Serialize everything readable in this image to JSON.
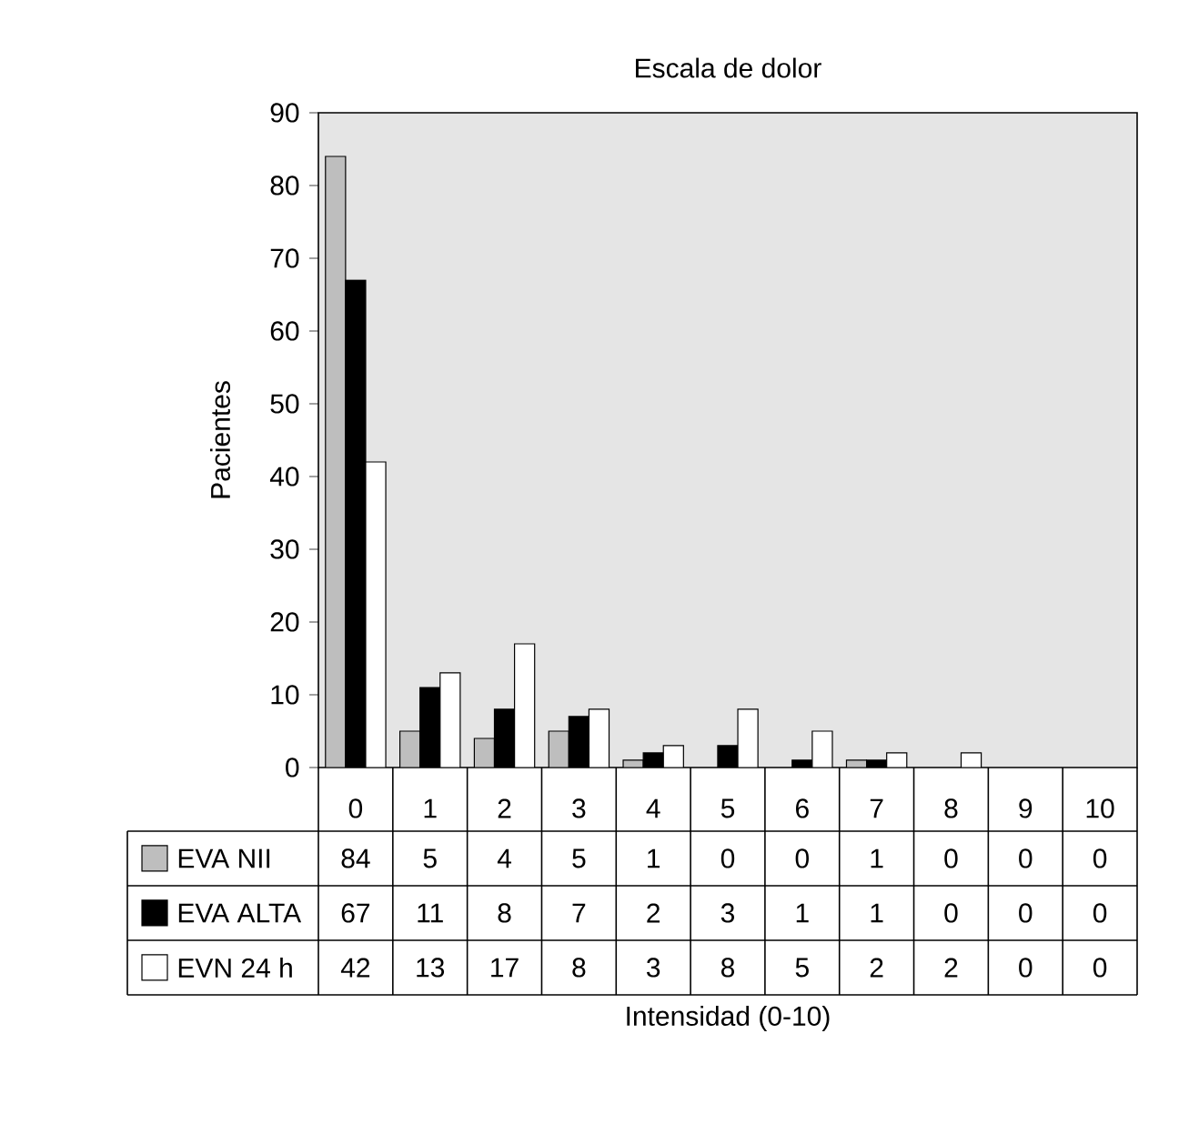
{
  "chart_data": {
    "type": "bar",
    "title": "Escala de dolor",
    "annotations": [
      "Intensidad (0-10)"
    ],
    "ylabel": "Pacientes",
    "categories": [
      "0",
      "1",
      "2",
      "3",
      "4",
      "5",
      "6",
      "7",
      "8",
      "9",
      "10"
    ],
    "series": [
      {
        "name": "EVA NII",
        "color": "#bebebe",
        "values": [
          84,
          5,
          4,
          5,
          1,
          0,
          0,
          1,
          0,
          0,
          0
        ]
      },
      {
        "name": "EVA ALTA",
        "color": "#000000",
        "values": [
          67,
          11,
          8,
          7,
          2,
          3,
          1,
          1,
          0,
          0,
          0
        ]
      },
      {
        "name": "EVN 24 h",
        "color": "#ffffff",
        "values": [
          42,
          13,
          17,
          8,
          3,
          8,
          5,
          2,
          2,
          0,
          0
        ]
      }
    ],
    "ylim": [
      0,
      90
    ],
    "yticks": [
      0,
      10,
      20,
      30,
      40,
      50,
      60,
      70,
      80,
      90
    ],
    "data_labels": true,
    "legend": "bottom",
    "grid": false
  }
}
